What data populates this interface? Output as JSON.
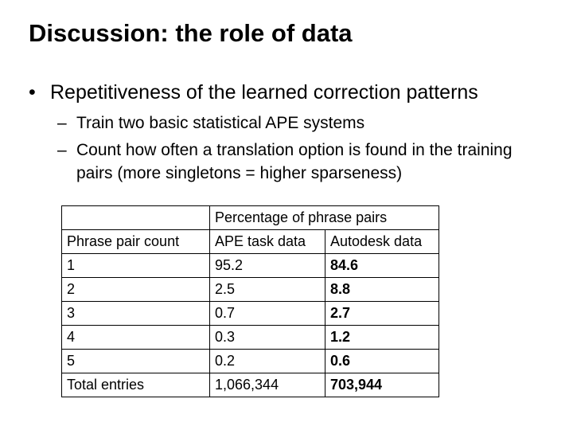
{
  "title": "Discussion: the role of data",
  "bullets": {
    "level1": "Repetitiveness of the learned correction patterns",
    "level1_marker": "•",
    "level2_marker": "–",
    "level2": [
      "Train two basic statistical APE systems",
      "Count how often a translation option is found in the training pairs (more singletons = higher sparseness)"
    ]
  },
  "table": {
    "group_header": "Percentage of phrase pairs",
    "columns": [
      "Phrase pair count",
      "APE task data",
      "Autodesk data"
    ],
    "rows": [
      [
        "1",
        "95.2",
        "84.6"
      ],
      [
        "2",
        "2.5",
        "8.8"
      ],
      [
        "3",
        "0.7",
        "2.7"
      ],
      [
        "4",
        "0.3",
        "1.2"
      ],
      [
        "5",
        "0.2",
        "0.6"
      ],
      [
        "Total entries",
        "1,066,344",
        "703,944"
      ]
    ]
  }
}
